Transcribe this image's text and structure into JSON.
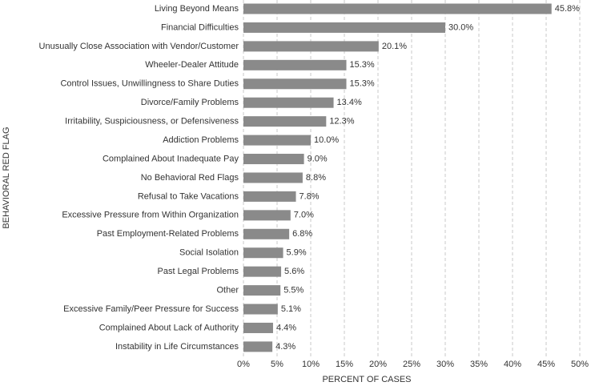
{
  "chart_data": {
    "type": "hbar",
    "y_label": "BEHAVIORAL RED FLAG",
    "x_label": "PERCENT OF CASES",
    "categories": [
      "Living Beyond Means",
      "Financial Difficulties",
      "Unusually Close Association with Vendor/Customer",
      "Wheeler-Dealer Attitude",
      "Control Issues, Unwillingness to Share Duties",
      "Divorce/Family Problems",
      "Irritability, Suspiciousness, or Defensiveness",
      "Addiction Problems",
      "Complained About Inadequate Pay",
      "No Behavioral Red Flags",
      "Refusal to Take Vacations",
      "Excessive Pressure from Within Organization",
      "Past Employment-Related Problems",
      "Social Isolation",
      "Past Legal Problems",
      "Other",
      "Excessive Family/Peer Pressure for Success",
      "Complained About Lack of Authority",
      "Instability in Life Circumstances"
    ],
    "values": [
      45.8,
      30.0,
      20.1,
      15.3,
      15.3,
      13.4,
      12.3,
      10.0,
      9.0,
      8.8,
      7.8,
      7.0,
      6.8,
      5.9,
      5.6,
      5.5,
      5.1,
      4.4,
      4.3
    ],
    "value_labels": [
      "45.8%",
      "30.0%",
      "20.1%",
      "15.3%",
      "15.3%",
      "13.4%",
      "12.3%",
      "10.0%",
      "9.0%",
      "8.8%",
      "7.8%",
      "7.0%",
      "6.8%",
      "5.9%",
      "5.6%",
      "5.5%",
      "5.1%",
      "4.4%",
      "4.3%"
    ],
    "color": "#8a8a8a",
    "xlim": [
      0,
      50
    ],
    "xticks": [
      {
        "value": 0,
        "label": "0%"
      },
      {
        "value": 5,
        "label": "5%"
      },
      {
        "value": 10,
        "label": "10%"
      },
      {
        "value": 15,
        "label": "15%"
      },
      {
        "value": 20,
        "label": "20%"
      },
      {
        "value": 25,
        "label": "25%"
      },
      {
        "value": 30,
        "label": "30%"
      },
      {
        "value": 35,
        "label": "35%"
      },
      {
        "value": 40,
        "label": "40%"
      },
      {
        "value": 45,
        "label": "45%"
      },
      {
        "value": 50,
        "label": "50%"
      }
    ],
    "grid": true
  }
}
